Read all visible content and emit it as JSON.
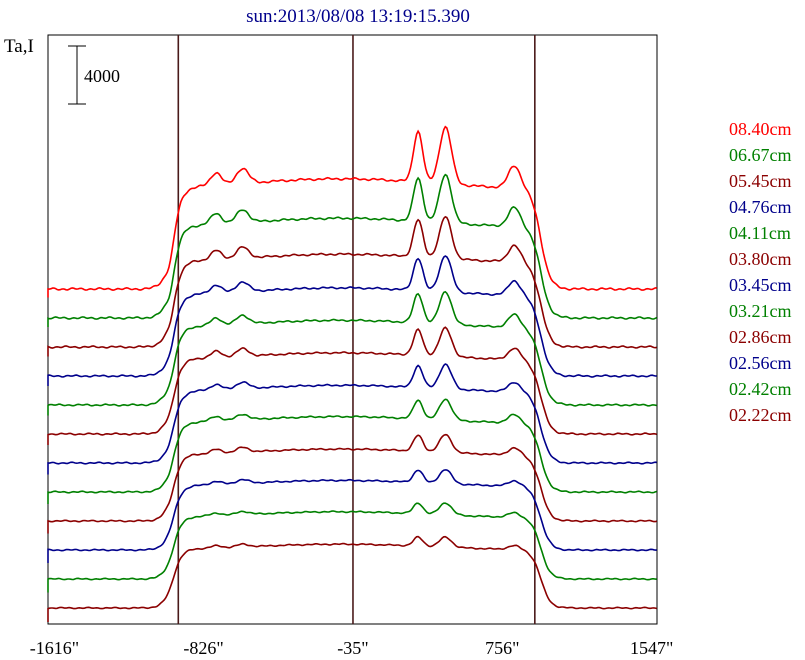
{
  "chart_data": {
    "type": "line",
    "title": "sun:2013/08/08 13:19:15.390",
    "ylabel": "Ta,I",
    "scale_bar": {
      "label": "4000",
      "value": 4000
    },
    "xlim": [
      -1650,
      1575
    ],
    "x_ticks": [
      {
        "value": -1616,
        "label": "-1616\""
      },
      {
        "value": -826,
        "label": "-826\""
      },
      {
        "value": -35,
        "label": "-35\""
      },
      {
        "value": 756,
        "label": "756\""
      },
      {
        "value": 1547,
        "label": "1547\""
      }
    ],
    "vertical_lines": [
      -960,
      -35,
      928
    ],
    "offset_step": 2000,
    "series": [
      {
        "name": "02.22cm",
        "color": "#8b0000",
        "scale": 0.55,
        "peak": 0.35
      },
      {
        "name": "02.42cm",
        "color": "#008000",
        "scale": 0.58,
        "peak": 0.4
      },
      {
        "name": "02.56cm",
        "color": "#00008b",
        "scale": 0.6,
        "peak": 0.45
      },
      {
        "name": "02.86cm",
        "color": "#8b0000",
        "scale": 0.62,
        "peak": 0.55
      },
      {
        "name": "03.21cm",
        "color": "#008000",
        "scale": 0.65,
        "peak": 0.62
      },
      {
        "name": "03.45cm",
        "color": "#00008b",
        "scale": 0.67,
        "peak": 0.7
      },
      {
        "name": "03.80cm",
        "color": "#8b0000",
        "scale": 0.7,
        "peak": 0.78
      },
      {
        "name": "04.11cm",
        "color": "#008000",
        "scale": 0.73,
        "peak": 0.86
      },
      {
        "name": "04.76cm",
        "color": "#00008b",
        "scale": 0.76,
        "peak": 0.92
      },
      {
        "name": "05.45cm",
        "color": "#8b0000",
        "scale": 0.8,
        "peak": 1.0
      },
      {
        "name": "06.67cm",
        "color": "#008000",
        "scale": 0.86,
        "peak": 1.08
      },
      {
        "name": "08.40cm",
        "color": "#ff0000",
        "scale": 0.95,
        "peak": 1.15
      }
    ]
  }
}
